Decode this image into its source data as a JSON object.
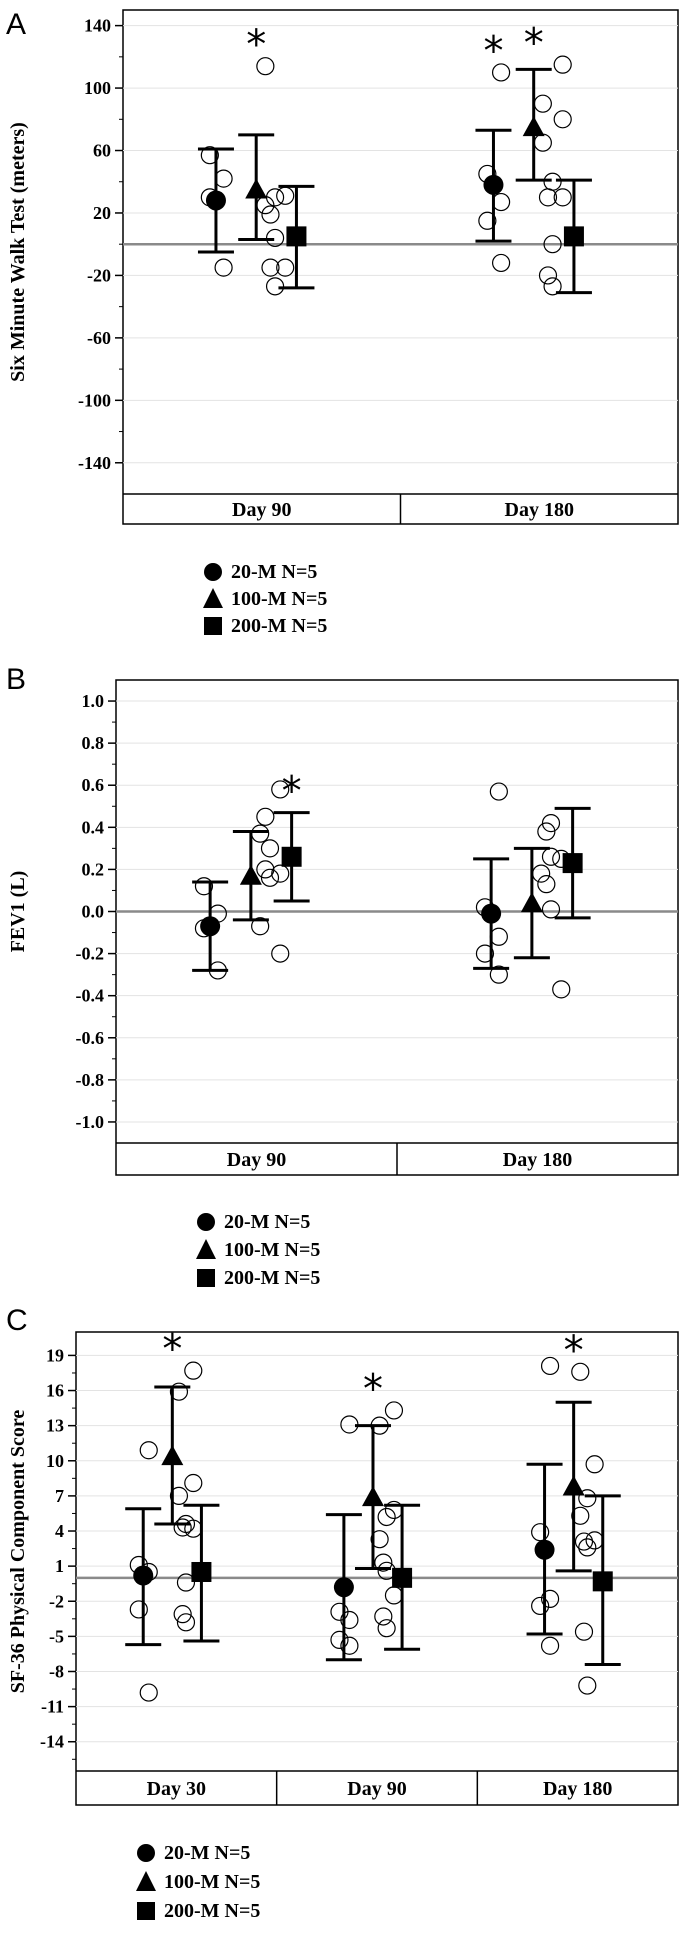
{
  "chart_data": [
    {
      "type": "scatter",
      "panel": "A",
      "ylabel": "Six Minute Walk Test (meters)",
      "ylim": [
        -160,
        150
      ],
      "yticks": [
        140,
        100,
        60,
        20,
        -20,
        -60,
        -100,
        -140
      ],
      "zero_line": 0,
      "categories": [
        "Day 90",
        "Day 180"
      ],
      "legend": [
        "20-M N=5",
        "100-M N=5",
        "200-M N=5"
      ],
      "groups": [
        {
          "category": "Day 90",
          "series": "20-M N=5",
          "marker": "circle",
          "mean": 28,
          "ci": [
            -5,
            61
          ],
          "points": [
            -15,
            30,
            42,
            57
          ],
          "star": false
        },
        {
          "category": "Day 90",
          "series": "100-M N=5",
          "marker": "triangle",
          "mean": 35,
          "ci": [
            3,
            70
          ],
          "points": [
            -15,
            25,
            31,
            114
          ],
          "star": true
        },
        {
          "category": "Day 90",
          "series": "200-M N=5",
          "marker": "square",
          "mean": 5,
          "ci": [
            -28,
            37
          ],
          "points": [
            -27,
            -15,
            4,
            19,
            30
          ],
          "star": false
        },
        {
          "category": "Day 180",
          "series": "20-M N=5",
          "marker": "circle",
          "mean": 38,
          "ci": [
            2,
            73
          ],
          "points": [
            -12,
            15,
            27,
            45,
            110
          ],
          "star": true
        },
        {
          "category": "Day 180",
          "series": "100-M N=5",
          "marker": "triangle",
          "mean": 75,
          "ci": [
            41,
            112
          ],
          "points": [
            30,
            65,
            80,
            90,
            115
          ],
          "star": true
        },
        {
          "category": "Day 180",
          "series": "200-M N=5",
          "marker": "square",
          "mean": 5,
          "ci": [
            -31,
            41
          ],
          "points": [
            -27,
            -20,
            0,
            30,
            40
          ],
          "star": false
        }
      ]
    },
    {
      "type": "scatter",
      "panel": "B",
      "ylabel": "FEV1 (L)",
      "ylim": [
        -1.1,
        1.1
      ],
      "yticks": [
        1.0,
        0.8,
        0.6,
        0.4,
        0.2,
        0.0,
        -0.2,
        -0.4,
        -0.6,
        -0.8,
        -1.0
      ],
      "zero_line": 0,
      "categories": [
        "Day 90",
        "Day 180"
      ],
      "legend": [
        "20-M N=5",
        "100-M N=5",
        "200-M N=5"
      ],
      "groups": [
        {
          "category": "Day 90",
          "series": "20-M N=5",
          "marker": "circle",
          "mean": -0.07,
          "ci": [
            -0.28,
            0.14
          ],
          "points": [
            -0.28,
            -0.08,
            -0.01,
            0.12
          ],
          "star": false
        },
        {
          "category": "Day 90",
          "series": "100-M N=5",
          "marker": "triangle",
          "mean": 0.17,
          "ci": [
            -0.04,
            0.38
          ],
          "points": [
            -0.2,
            -0.07,
            0.18,
            0.37,
            0.58
          ],
          "star": false
        },
        {
          "category": "Day 90",
          "series": "200-M N=5",
          "marker": "square",
          "mean": 0.26,
          "ci": [
            0.05,
            0.47
          ],
          "points": [
            0.16,
            0.2,
            0.3,
            0.45
          ],
          "star": true
        },
        {
          "category": "Day 180",
          "series": "20-M N=5",
          "marker": "circle",
          "mean": -0.01,
          "ci": [
            -0.27,
            0.25
          ],
          "points": [
            -0.3,
            -0.2,
            -0.12,
            0.02,
            0.57
          ],
          "star": false
        },
        {
          "category": "Day 180",
          "series": "100-M N=5",
          "marker": "triangle",
          "mean": 0.04,
          "ci": [
            -0.22,
            0.3
          ],
          "points": [
            -0.37,
            0.18,
            0.25
          ],
          "star": false
        },
        {
          "category": "Day 180",
          "series": "200-M N=5",
          "marker": "square",
          "mean": 0.23,
          "ci": [
            -0.03,
            0.49
          ],
          "points": [
            0.01,
            0.13,
            0.26,
            0.38,
            0.42
          ],
          "star": false
        }
      ]
    },
    {
      "type": "scatter",
      "panel": "C",
      "ylabel": "SF-36 Physical Component Score",
      "ylim": [
        -16.5,
        21
      ],
      "yticks": [
        19,
        16,
        13,
        10,
        7,
        4,
        1,
        -2,
        -5,
        -8,
        -11,
        -14
      ],
      "zero_line": 0,
      "categories": [
        "Day 30",
        "Day 90",
        "Day 180"
      ],
      "legend": [
        "20-M N=5",
        "100-M N=5",
        "200-M N=5"
      ],
      "groups": [
        {
          "category": "Day 30",
          "series": "20-M N=5",
          "marker": "circle",
          "mean": 0.2,
          "ci": [
            -5.7,
            5.9
          ],
          "points": [
            -9.8,
            -2.7,
            0.5,
            1.1,
            10.9
          ],
          "star": false
        },
        {
          "category": "Day 30",
          "series": "100-M N=5",
          "marker": "triangle",
          "mean": 10.4,
          "ci": [
            4.6,
            16.3
          ],
          "points": [
            4.2,
            7.0,
            8.1,
            15.9,
            17.7
          ],
          "star": true
        },
        {
          "category": "Day 30",
          "series": "200-M N=5",
          "marker": "square",
          "mean": 0.5,
          "ci": [
            -5.4,
            6.2
          ],
          "points": [
            -3.8,
            -3.1,
            -0.4,
            4.3,
            4.6
          ],
          "star": false
        },
        {
          "category": "Day 90",
          "series": "20-M N=5",
          "marker": "circle",
          "mean": -0.8,
          "ci": [
            -7.0,
            5.4
          ],
          "points": [
            -5.8,
            -5.3,
            -3.6,
            -2.9,
            13.1
          ],
          "star": false
        },
        {
          "category": "Day 90",
          "series": "100-M N=5",
          "marker": "triangle",
          "mean": 6.9,
          "ci": [
            0.8,
            13.0
          ],
          "points": [
            -1.5,
            3.3,
            5.8,
            13.0,
            14.3
          ],
          "star": true
        },
        {
          "category": "Day 90",
          "series": "200-M N=5",
          "marker": "square",
          "mean": 0.0,
          "ci": [
            -6.1,
            6.2
          ],
          "points": [
            -4.3,
            -3.3,
            0.6,
            1.3,
            5.2
          ],
          "star": false
        },
        {
          "category": "Day 180",
          "series": "20-M N=5",
          "marker": "circle",
          "mean": 2.4,
          "ci": [
            -4.8,
            9.7
          ],
          "points": [
            -5.8,
            -2.4,
            -1.8,
            3.9,
            18.1
          ],
          "star": false
        },
        {
          "category": "Day 180",
          "series": "100-M N=5",
          "marker": "triangle",
          "mean": 7.8,
          "ci": [
            0.6,
            15.0
          ],
          "points": [
            3.2,
            5.3,
            9.7,
            17.6
          ],
          "star": true
        },
        {
          "category": "Day 180",
          "series": "200-M N=5",
          "marker": "square",
          "mean": -0.3,
          "ci": [
            -7.4,
            7.0
          ],
          "points": [
            -9.2,
            -4.6,
            2.6,
            3.1,
            6.8
          ],
          "star": false
        }
      ]
    }
  ],
  "panels": {
    "a": {
      "letter": "A"
    },
    "b": {
      "letter": "B"
    },
    "c": {
      "letter": "C"
    }
  },
  "star_symbol": "*"
}
